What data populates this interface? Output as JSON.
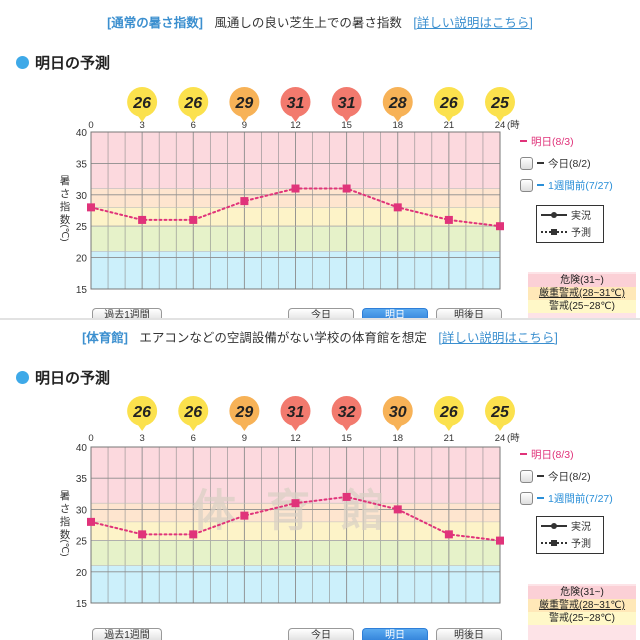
{
  "panels": [
    {
      "header": {
        "tag": "[通常の暑さ指数]",
        "description": "風通しの良い芝生上での暑さ指数",
        "link": "詳しい説明はこちら",
        "link_open": "[",
        "link_close": "]"
      },
      "section_title": "明日の予測",
      "watermark": "",
      "buttons": [
        "過去1週間",
        "今日",
        "明日",
        "明後日"
      ],
      "legend": {
        "tomorrow": "明日(8/3)",
        "today": "今日(8/2)",
        "week_ago": "1週間前(7/27)",
        "actual": "実況",
        "forecast": "予測"
      },
      "levels": {
        "danger": "危険(31~)",
        "severe": "厳重警戒(28~31℃)",
        "alert": "警戒(25~28℃)"
      }
    },
    {
      "header": {
        "tag": "[体育館]",
        "description": "エアコンなどの空調設備がない学校の体育館を想定",
        "link": "詳しい説明はこちら",
        "link_open": "[",
        "link_close": "]"
      },
      "section_title": "明日の予測",
      "watermark": "体育館",
      "buttons": [
        "過去1週間",
        "今日",
        "明日",
        "明後日"
      ],
      "legend": {
        "tomorrow": "明日(8/3)",
        "today": "今日(8/2)",
        "week_ago": "1週間前(7/27)",
        "actual": "実況",
        "forecast": "予測"
      },
      "levels": {
        "danger": "危険(31~)",
        "severe": "厳重警戒(28~31℃)",
        "alert": "警戒(25~28℃)"
      }
    }
  ],
  "chart_data": [
    {
      "type": "line",
      "title": "明日の予測",
      "ylabel": "暑さ指数 (℃)",
      "x": [
        0,
        3,
        6,
        9,
        12,
        15,
        18,
        21,
        24
      ],
      "x_unit": "時",
      "ylim": [
        15,
        40
      ],
      "yticks": [
        15,
        20,
        25,
        30,
        35,
        40
      ],
      "badges": [
        26,
        26,
        29,
        31,
        31,
        28,
        26,
        25
      ],
      "badge_x": [
        3,
        6,
        9,
        12,
        15,
        18,
        21,
        24
      ],
      "series": [
        {
          "name": "明日(8/3)",
          "style": "forecast",
          "color": "#e0337a",
          "values": [
            28,
            26,
            26,
            29,
            31,
            31,
            28,
            26,
            25
          ]
        }
      ],
      "bands": [
        {
          "from": 31,
          "to": 40,
          "color": "#fcd9de"
        },
        {
          "from": 28,
          "to": 31,
          "color": "#fee5cf"
        },
        {
          "from": 25,
          "to": 28,
          "color": "#fdf3c8"
        },
        {
          "from": 21,
          "to": 25,
          "color": "#e6f2c9"
        },
        {
          "from": 15,
          "to": 21,
          "color": "#ccf0fb"
        }
      ]
    },
    {
      "type": "line",
      "title": "明日の予測",
      "ylabel": "暑さ指数 (℃)",
      "x": [
        0,
        3,
        6,
        9,
        12,
        15,
        18,
        21,
        24
      ],
      "x_unit": "時",
      "ylim": [
        15,
        40
      ],
      "yticks": [
        15,
        20,
        25,
        30,
        35,
        40
      ],
      "badges": [
        26,
        26,
        29,
        31,
        32,
        30,
        26,
        25
      ],
      "badge_x": [
        3,
        6,
        9,
        12,
        15,
        18,
        21,
        24
      ],
      "series": [
        {
          "name": "明日(8/3)",
          "style": "forecast",
          "color": "#e0337a",
          "values": [
            28,
            26,
            26,
            29,
            31,
            32,
            30,
            26,
            25
          ]
        }
      ],
      "bands": [
        {
          "from": 31,
          "to": 40,
          "color": "#fcd9de"
        },
        {
          "from": 28,
          "to": 31,
          "color": "#fee5cf"
        },
        {
          "from": 25,
          "to": 28,
          "color": "#fdf3c8"
        },
        {
          "from": 21,
          "to": 25,
          "color": "#e6f2c9"
        },
        {
          "from": 15,
          "to": 21,
          "color": "#ccf0fb"
        }
      ]
    }
  ]
}
